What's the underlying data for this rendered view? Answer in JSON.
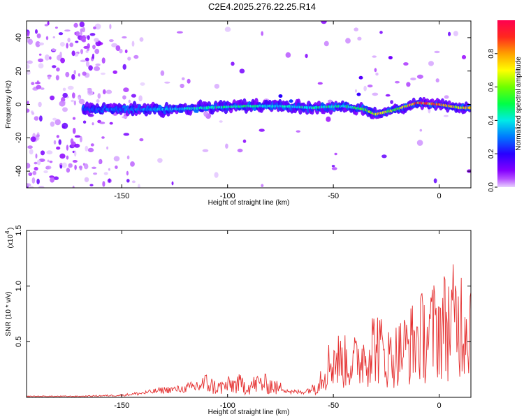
{
  "title": "C2E4.2025.276.22.25.R14",
  "chart_data": [
    {
      "type": "heatmap",
      "xlabel": "Height of straight line (km)",
      "ylabel": "Frequency (Hz)",
      "xlim": [
        -195,
        15
      ],
      "ylim": [
        -50,
        50
      ],
      "xticks": [
        -150,
        -100,
        -50,
        0
      ],
      "yticks": [
        -40,
        -20,
        0,
        20,
        40
      ],
      "colorbar": {
        "label": "Normalized spectral amplitude",
        "range": [
          0.0,
          1.0
        ],
        "ticks": [
          "0.0",
          "0.2",
          "0.4",
          "0.6",
          "0.8"
        ]
      },
      "ridge": {
        "note": "frequency of main spectral ridge vs height",
        "x": [
          -168,
          -150,
          -130,
          -110,
          -90,
          -75,
          -60,
          -45,
          -35,
          -30,
          -20,
          -10,
          0,
          10,
          15
        ],
        "y": [
          -3,
          -3,
          -3,
          -2,
          -1,
          -1,
          -2,
          -1,
          -3,
          -6,
          -3,
          1,
          0,
          -2,
          -2
        ],
        "amplitude": [
          0.25,
          0.3,
          0.35,
          0.45,
          0.45,
          0.4,
          0.45,
          0.45,
          0.55,
          0.7,
          0.6,
          0.9,
          0.85,
          0.75,
          0.7
        ]
      }
    },
    {
      "type": "line",
      "xlabel": "Height of straight line (km)",
      "ylabel": "SNR (10 * v/v)",
      "y_multiplier": "(x10",
      "y_exponent": "4",
      "xlim": [
        -195,
        15
      ],
      "ylim": [
        0,
        1.5
      ],
      "xticks": [
        -150,
        -100,
        -50,
        0
      ],
      "yticks": [
        "0.5",
        "1.0",
        "1.5"
      ],
      "series": [
        {
          "color": "#e53030",
          "x": [
            -195,
            -170,
            -150,
            -140,
            -130,
            -120,
            -115,
            -110,
            -105,
            -100,
            -95,
            -90,
            -85,
            -80,
            -75,
            -70,
            -65,
            -60,
            -55,
            -50,
            -45,
            -40,
            -35,
            -30,
            -25,
            -20,
            -15,
            -10,
            -5,
            0,
            5,
            10,
            15
          ],
          "y": [
            0.01,
            0.01,
            0.02,
            0.04,
            0.07,
            0.08,
            0.14,
            0.18,
            0.12,
            0.15,
            0.17,
            0.14,
            0.18,
            0.16,
            0.1,
            0.05,
            0.05,
            0.08,
            0.3,
            0.5,
            0.45,
            0.45,
            0.55,
            0.7,
            0.5,
            0.55,
            0.65,
            0.75,
            0.8,
            0.9,
            0.95,
            1.0,
            1.0
          ]
        }
      ]
    }
  ]
}
